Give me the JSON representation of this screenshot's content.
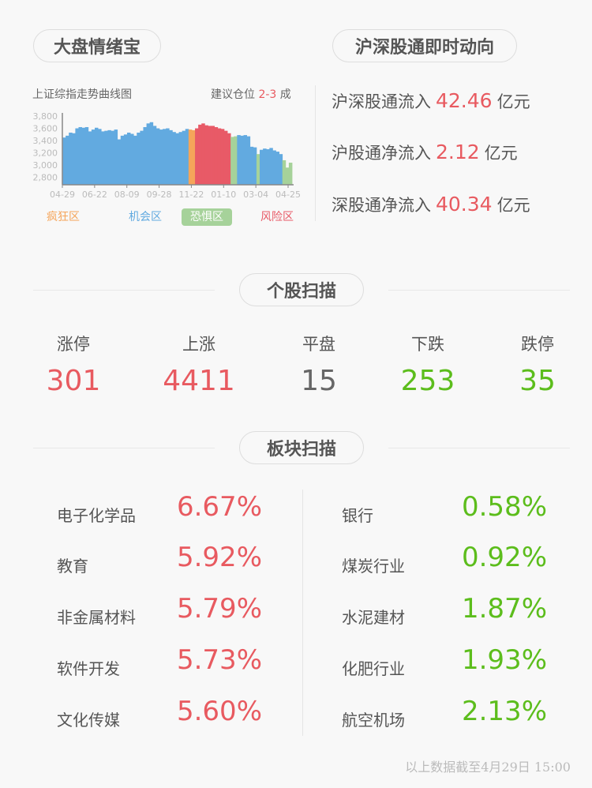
{
  "mood": {
    "title": "大盘情绪宝",
    "chart_title": "上证综指走势曲线图",
    "advice_prefix": "建议仓位",
    "advice_value": "2-3",
    "advice_suffix": "成",
    "legend": [
      {
        "label": "疯狂区",
        "color": "#f5a55a"
      },
      {
        "label": "机会区",
        "color": "#62aae0"
      },
      {
        "label": "恐惧区",
        "color": "#a6d29a"
      },
      {
        "label": "风险区",
        "color": "#e85a67"
      }
    ]
  },
  "chart_data": {
    "type": "area",
    "title": "上证综指走势曲线图",
    "ylim": [
      2680,
      3800
    ],
    "yticks": [
      "3,800",
      "3,600",
      "3,400",
      "3,200",
      "3,000",
      "2,800"
    ],
    "ytick_values": [
      3800,
      3600,
      3400,
      3200,
      3000,
      2800
    ],
    "xticks": [
      "04-29",
      "06-22",
      "08-09",
      "09-28",
      "11-22",
      "01-10",
      "03-04",
      "04-25"
    ],
    "values": [
      3450,
      3480,
      3530,
      3520,
      3600,
      3620,
      3610,
      3620,
      3550,
      3580,
      3610,
      3590,
      3550,
      3560,
      3570,
      3560,
      3580,
      3420,
      3480,
      3500,
      3530,
      3510,
      3480,
      3530,
      3560,
      3620,
      3680,
      3700,
      3640,
      3600,
      3580,
      3590,
      3600,
      3570,
      3540,
      3520,
      3540,
      3560,
      3590,
      3580,
      3570,
      3600,
      3660,
      3680,
      3650,
      3640,
      3640,
      3620,
      3600,
      3590,
      3560,
      3520,
      3460,
      3470,
      3490,
      3480,
      3490,
      3470,
      3300,
      3290,
      3180,
      3250,
      3270,
      3260,
      3280,
      3240,
      3220,
      3180,
      3080,
      2960,
      3040
    ],
    "zones": [
      "机会区",
      "机会区",
      "机会区",
      "机会区",
      "机会区",
      "机会区",
      "机会区",
      "机会区",
      "机会区",
      "机会区",
      "机会区",
      "机会区",
      "机会区",
      "机会区",
      "机会区",
      "机会区",
      "机会区",
      "机会区",
      "机会区",
      "机会区",
      "机会区",
      "机会区",
      "机会区",
      "机会区",
      "机会区",
      "机会区",
      "机会区",
      "机会区",
      "机会区",
      "机会区",
      "机会区",
      "机会区",
      "机会区",
      "机会区",
      "机会区",
      "机会区",
      "机会区",
      "机会区",
      "机会区",
      "疯狂区",
      "疯狂区",
      "风险区",
      "风险区",
      "风险区",
      "风险区",
      "风险区",
      "风险区",
      "风险区",
      "风险区",
      "风险区",
      "风险区",
      "风险区",
      "恐惧区",
      "恐惧区",
      "机会区",
      "机会区",
      "机会区",
      "机会区",
      "机会区",
      "机会区",
      "恐惧区",
      "机会区",
      "机会区",
      "机会区",
      "机会区",
      "机会区",
      "机会区",
      "机会区",
      "恐惧区",
      "恐惧区",
      "恐惧区"
    ]
  },
  "hsgt": {
    "title": "沪深股通即时动向",
    "rows": [
      {
        "label": "沪深股通流入",
        "value": "42.46",
        "unit": "亿元"
      },
      {
        "label": "沪股通净流入",
        "value": "2.12",
        "unit": "亿元"
      },
      {
        "label": "深股通净流入",
        "value": "40.34",
        "unit": "亿元"
      }
    ]
  },
  "stocks": {
    "title": "个股扫描",
    "items": [
      {
        "label": "涨停",
        "value": "301",
        "color": "#e85a60"
      },
      {
        "label": "上涨",
        "value": "4411",
        "color": "#e85a60"
      },
      {
        "label": "平盘",
        "value": "15",
        "color": "#666666"
      },
      {
        "label": "下跌",
        "value": "253",
        "color": "#5cbd1c"
      },
      {
        "label": "跌停",
        "value": "35",
        "color": "#5cbd1c"
      }
    ]
  },
  "sectors": {
    "title": "板块扫描",
    "gainers": [
      {
        "name": "电子化学品",
        "value": "6.67%"
      },
      {
        "name": "教育",
        "value": "5.92%"
      },
      {
        "name": "非金属材料",
        "value": "5.79%"
      },
      {
        "name": "软件开发",
        "value": "5.73%"
      },
      {
        "name": "文化传媒",
        "value": "5.60%"
      }
    ],
    "losers": [
      {
        "name": "银行",
        "value": "0.58%"
      },
      {
        "name": "煤炭行业",
        "value": "0.92%"
      },
      {
        "name": "水泥建材",
        "value": "1.87%"
      },
      {
        "name": "化肥行业",
        "value": "1.93%"
      },
      {
        "name": "航空机场",
        "value": "2.13%"
      }
    ]
  },
  "footer": "以上数据截至4月29日 15:00"
}
